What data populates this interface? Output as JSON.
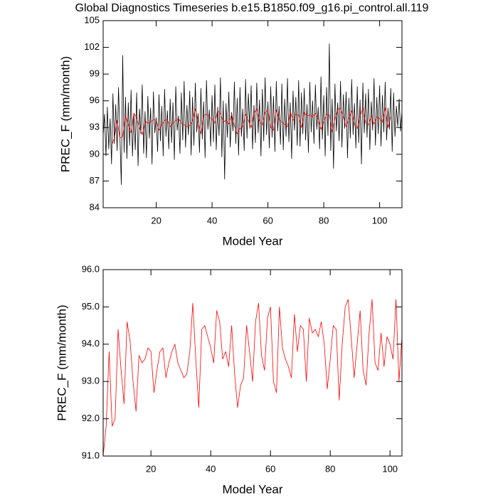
{
  "chart_data": [
    {
      "type": "line",
      "title": "Global Diagnostics Timeseries b.e15.B1850.f09_g16.pi_control.all.119",
      "x_label": "Model Year",
      "y_label": "PREC_F (mm/month)",
      "xlim": [
        1,
        108
      ],
      "xticks": [
        20,
        40,
        60,
        80,
        100
      ],
      "ylim": [
        84,
        105
      ],
      "yticks": [
        84,
        87,
        90,
        93,
        96,
        99,
        102,
        105
      ],
      "series": [
        {
          "color": "#000000",
          "x": [
            1,
            1.5,
            2,
            2.5,
            3,
            3.5,
            4,
            4.5,
            5,
            5.5,
            6,
            6.5,
            7,
            7.5,
            8,
            8.5,
            9,
            9.5,
            10,
            10.5,
            11,
            11.5,
            12,
            12.5,
            13,
            13.5,
            14,
            14.5,
            15,
            15.5,
            16,
            16.5,
            17,
            17.5,
            18,
            18.5,
            19,
            19.5,
            20,
            20.5,
            21,
            21.5,
            22,
            22.5,
            23,
            23.5,
            24,
            24.5,
            25,
            25.5,
            26,
            26.5,
            27,
            27.5,
            28,
            28.5,
            29,
            29.5,
            30,
            30.5,
            31,
            31.5,
            32,
            32.5,
            33,
            33.5,
            34,
            34.5,
            35,
            35.5,
            36,
            36.5,
            37,
            37.5,
            38,
            38.5,
            39,
            39.5,
            40,
            40.5,
            41,
            41.5,
            42,
            42.5,
            43,
            43.5,
            44,
            44.5,
            45,
            45.5,
            46,
            46.5,
            47,
            47.5,
            48,
            48.5,
            49,
            49.5,
            50,
            50.5,
            51,
            51.5,
            52,
            52.5,
            53,
            53.5,
            54,
            54.5,
            55,
            55.5,
            56,
            56.5,
            57,
            57.5,
            58,
            58.5,
            59,
            59.5,
            60,
            60.5,
            61,
            61.5,
            62,
            62.5,
            63,
            63.5,
            64,
            64.5,
            65,
            65.5,
            66,
            66.5,
            67,
            67.5,
            68,
            68.5,
            69,
            69.5,
            70,
            70.5,
            71,
            71.5,
            72,
            72.5,
            73,
            73.5,
            74,
            74.5,
            75,
            75.5,
            76,
            76.5,
            77,
            77.5,
            78,
            78.5,
            79,
            79.5,
            80,
            80.5,
            81,
            81.5,
            82,
            82.5,
            83,
            83.5,
            84,
            84.5,
            85,
            85.5,
            86,
            86.5,
            87,
            87.5,
            88,
            88.5,
            89,
            89.5,
            90,
            90.5,
            91,
            91.5,
            92,
            92.5,
            93,
            93.5,
            94,
            94.5,
            95,
            95.5,
            96,
            96.5,
            97,
            97.5,
            98,
            98.5,
            99,
            99.5,
            100,
            100.5,
            101,
            101.5,
            102,
            102.5,
            103,
            103.5,
            104,
            104.5,
            105,
            105.5,
            106,
            106.5,
            107,
            107.5,
            108
          ],
          "values": [
            92.1,
            94.5,
            89.8,
            95.3,
            90.6,
            94.0,
            88.9,
            96.8,
            91.2,
            95.6,
            90.4,
            97.5,
            92.0,
            86.6,
            101.1,
            90.2,
            96.4,
            89.5,
            95.8,
            91.0,
            97.2,
            89.8,
            94.6,
            90.5,
            96.9,
            88.7,
            95.1,
            92.3,
            97.8,
            90.1,
            94.8,
            89.6,
            96.5,
            91.8,
            95.2,
            88.9,
            97.0,
            92.4,
            94.1,
            90.3,
            96.7,
            91.5,
            95.4,
            89.8,
            97.3,
            92.0,
            94.9,
            90.6,
            96.2,
            91.3,
            95.8,
            89.4,
            97.6,
            92.7,
            94.3,
            90.1,
            96.9,
            91.6,
            98.2,
            90.8,
            95.5,
            92.2,
            97.1,
            89.9,
            96.4,
            91.0,
            98.0,
            92.5,
            94.6,
            90.2,
            97.4,
            91.7,
            95.9,
            89.6,
            98.3,
            92.8,
            95.0,
            90.9,
            96.6,
            91.4,
            97.8,
            90.5,
            95.3,
            92.1,
            98.6,
            89.7,
            96.0,
            87.2,
            95.7,
            91.9,
            97.0,
            90.8,
            94.7,
            92.6,
            98.1,
            91.2,
            96.3,
            89.9,
            97.5,
            92.0,
            95.1,
            90.4,
            98.4,
            91.8,
            96.8,
            92.9,
            97.7,
            90.6,
            95.5,
            91.3,
            98.0,
            92.4,
            96.1,
            89.8,
            97.3,
            91.5,
            98.6,
            92.2,
            95.9,
            90.7,
            97.6,
            91.9,
            96.5,
            90.3,
            98.2,
            92.6,
            95.4,
            91.1,
            97.9,
            90.5,
            96.2,
            92.0,
            98.5,
            91.4,
            95.8,
            89.5,
            97.1,
            92.7,
            96.4,
            91.0,
            98.3,
            90.9,
            96.9,
            92.3,
            97.4,
            91.6,
            95.6,
            90.2,
            98.1,
            92.5,
            96.0,
            91.2,
            97.8,
            92.8,
            95.3,
            90.6,
            98.7,
            91.7,
            96.6,
            89.8,
            97.5,
            92.1,
            102.4,
            90.4,
            96.2,
            88.4,
            97.9,
            92.6,
            95.8,
            91.5,
            98.2,
            90.8,
            96.7,
            92.9,
            97.0,
            89.6,
            96.3,
            91.8,
            98.4,
            92.2,
            95.7,
            90.7,
            97.6,
            91.3,
            96.1,
            88.9,
            98.0,
            92.4,
            96.8,
            91.9,
            97.3,
            90.5,
            95.9,
            92.7,
            98.5,
            91.0,
            96.4,
            92.3,
            97.7,
            90.9,
            96.6,
            92.5,
            98.1,
            91.6,
            95.2,
            92.8,
            97.4,
            90.3,
            96.9,
            92.0,
            95.4,
            93.1,
            96.2,
            92.6,
            94.8
          ]
        },
        {
          "color": "#ff0000",
          "x": [
            4,
            5,
            6,
            7,
            8,
            9,
            10,
            11,
            12,
            13,
            14,
            15,
            16,
            17,
            18,
            19,
            20,
            21,
            22,
            23,
            24,
            25,
            26,
            27,
            28,
            29,
            30,
            31,
            32,
            33,
            34,
            35,
            36,
            37,
            38,
            39,
            40,
            41,
            42,
            43,
            44,
            45,
            46,
            47,
            48,
            49,
            50,
            51,
            52,
            53,
            54,
            55,
            56,
            57,
            58,
            59,
            60,
            61,
            62,
            63,
            64,
            65,
            66,
            67,
            68,
            69,
            70,
            71,
            72,
            73,
            74,
            75,
            76,
            77,
            78,
            79,
            80,
            81,
            82,
            83,
            84,
            85,
            86,
            87,
            88,
            89,
            90,
            91,
            92,
            93,
            94,
            95,
            96,
            97,
            98,
            99,
            100,
            101,
            102,
            103,
            104
          ],
          "values": [
            91.0,
            91.8,
            93.8,
            91.8,
            92.0,
            94.4,
            93.3,
            92.4,
            94.6,
            94.1,
            93.0,
            92.2,
            93.7,
            93.5,
            93.6,
            93.9,
            93.8,
            92.7,
            93.3,
            93.8,
            93.9,
            93.1,
            93.5,
            93.8,
            94.0,
            93.5,
            93.3,
            93.1,
            93.2,
            93.8,
            95.1,
            93.6,
            92.3,
            94.4,
            94.5,
            94.2,
            93.9,
            93.5,
            94.9,
            94.6,
            93.6,
            93.8,
            93.4,
            94.5,
            93.2,
            92.3,
            92.9,
            93.1,
            94.5,
            93.8,
            93.0,
            94.6,
            95.1,
            93.7,
            93.3,
            94.7,
            95.0,
            93.0,
            92.7,
            95.0,
            93.9,
            93.6,
            93.4,
            93.1,
            94.8,
            93.8,
            94.5,
            94.4,
            93.0,
            94.7,
            94.3,
            94.4,
            94.2,
            94.6,
            94.0,
            92.8,
            93.6,
            94.5,
            94.4,
            92.5,
            94.0,
            95.0,
            95.2,
            94.2,
            93.1,
            94.0,
            94.9,
            93.3,
            92.9,
            94.3,
            95.2,
            93.5,
            93.3,
            94.3,
            93.4,
            94.2,
            94.0,
            93.6,
            95.2,
            93.0,
            94.2
          ]
        }
      ]
    },
    {
      "type": "line",
      "x_label": "Model Year",
      "y_label": "PREC_F (mm/month)",
      "xlim": [
        4,
        104
      ],
      "xticks": [
        20,
        40,
        60,
        80,
        100
      ],
      "ylim": [
        91,
        96
      ],
      "yticks": [
        {
          "value": 91,
          "label": "91.0"
        },
        {
          "value": 92,
          "label": "92.0"
        },
        {
          "value": 93,
          "label": "93.0"
        },
        {
          "value": 94,
          "label": "94.0"
        },
        {
          "value": 95,
          "label": "95.0"
        },
        {
          "value": 96,
          "label": "96.0"
        }
      ],
      "series": [
        {
          "color": "#ff0000",
          "x": [
            4,
            5,
            6,
            7,
            8,
            9,
            10,
            11,
            12,
            13,
            14,
            15,
            16,
            17,
            18,
            19,
            20,
            21,
            22,
            23,
            24,
            25,
            26,
            27,
            28,
            29,
            30,
            31,
            32,
            33,
            34,
            35,
            36,
            37,
            38,
            39,
            40,
            41,
            42,
            43,
            44,
            45,
            46,
            47,
            48,
            49,
            50,
            51,
            52,
            53,
            54,
            55,
            56,
            57,
            58,
            59,
            60,
            61,
            62,
            63,
            64,
            65,
            66,
            67,
            68,
            69,
            70,
            71,
            72,
            73,
            74,
            75,
            76,
            77,
            78,
            79,
            80,
            81,
            82,
            83,
            84,
            85,
            86,
            87,
            88,
            89,
            90,
            91,
            92,
            93,
            94,
            95,
            96,
            97,
            98,
            99,
            100,
            101,
            102,
            103,
            104
          ],
          "values": [
            91.0,
            91.8,
            93.8,
            91.8,
            92.0,
            94.4,
            93.3,
            92.4,
            94.6,
            94.1,
            93.0,
            92.2,
            93.7,
            93.5,
            93.6,
            93.9,
            93.8,
            92.7,
            93.3,
            93.8,
            93.9,
            93.1,
            93.5,
            93.8,
            94.0,
            93.5,
            93.3,
            93.1,
            93.2,
            93.8,
            95.1,
            93.6,
            92.3,
            94.4,
            94.5,
            94.2,
            93.9,
            93.5,
            94.9,
            94.6,
            93.6,
            93.8,
            93.4,
            94.5,
            93.2,
            92.3,
            92.9,
            93.1,
            94.5,
            93.8,
            93.0,
            94.6,
            95.1,
            93.7,
            93.3,
            94.7,
            95.0,
            93.0,
            92.7,
            95.0,
            93.9,
            93.6,
            93.4,
            93.1,
            94.8,
            93.8,
            94.5,
            94.4,
            93.0,
            94.7,
            94.3,
            94.4,
            94.2,
            94.6,
            94.0,
            92.8,
            93.6,
            94.5,
            94.4,
            92.5,
            94.0,
            95.0,
            95.2,
            94.2,
            93.1,
            94.0,
            94.9,
            93.3,
            92.9,
            94.3,
            95.2,
            93.5,
            93.3,
            94.3,
            93.4,
            94.2,
            94.0,
            93.6,
            95.2,
            93.0,
            94.2
          ]
        }
      ]
    }
  ]
}
